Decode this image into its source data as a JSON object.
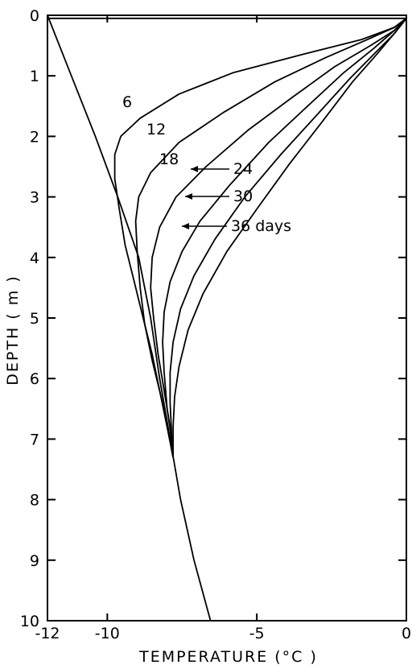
{
  "chart_data": {
    "type": "line",
    "title": "",
    "xlabel": "TEMPERATURE (°C )",
    "ylabel": "DEPTH  ( m )",
    "xlim": [
      -12,
      0
    ],
    "ylim": [
      10,
      0
    ],
    "x_ticks": [
      -12,
      -10,
      -5,
      0
    ],
    "x_tick_labels": [
      "-12",
      "-10",
      "-5",
      "0"
    ],
    "y_ticks": [
      0,
      1,
      2,
      3,
      4,
      5,
      6,
      7,
      8,
      9,
      10
    ],
    "y_tick_labels": [
      "0",
      "1",
      "2",
      "3",
      "4",
      "5",
      "6",
      "7",
      "8",
      "9",
      "10"
    ],
    "grid": false,
    "legend": "none",
    "series": [
      {
        "points": [
          [
            -12,
            0.05
          ],
          [
            -11.7,
            0.05
          ],
          [
            0,
            0.05
          ]
        ]
      },
      {
        "points": [
          [
            -12,
            0
          ],
          [
            -11.2,
            1
          ],
          [
            -10.4,
            2
          ],
          [
            -9.65,
            3
          ],
          [
            -8.95,
            4
          ],
          [
            -8.55,
            5
          ],
          [
            -8.25,
            6
          ],
          [
            -7.9,
            7
          ],
          [
            -7.55,
            8
          ],
          [
            -7.1,
            9
          ],
          [
            -6.55,
            10
          ]
        ]
      },
      {
        "label": "6",
        "points": [
          [
            0,
            0.05
          ],
          [
            -0.4,
            0.2
          ],
          [
            -1.5,
            0.4
          ],
          [
            -3.5,
            0.65
          ],
          [
            -5.8,
            0.95
          ],
          [
            -7.6,
            1.3
          ],
          [
            -8.9,
            1.7
          ],
          [
            -9.55,
            2.0
          ],
          [
            -9.75,
            2.3
          ],
          [
            -9.75,
            2.7
          ],
          [
            -9.6,
            3.2
          ],
          [
            -9.4,
            3.8
          ],
          [
            -9.1,
            4.4
          ],
          [
            -8.8,
            5.0
          ],
          [
            -8.5,
            5.6
          ],
          [
            -8.25,
            6.2
          ],
          [
            -8.0,
            6.8
          ],
          [
            -7.8,
            7.3
          ]
        ]
      },
      {
        "label": "12",
        "points": [
          [
            0,
            0.05
          ],
          [
            -0.4,
            0.2
          ],
          [
            -1.3,
            0.4
          ],
          [
            -2.7,
            0.7
          ],
          [
            -4.4,
            1.1
          ],
          [
            -6.1,
            1.6
          ],
          [
            -7.6,
            2.1
          ],
          [
            -8.55,
            2.6
          ],
          [
            -8.95,
            3.0
          ],
          [
            -9.05,
            3.4
          ],
          [
            -9.0,
            3.9
          ],
          [
            -8.9,
            4.5
          ],
          [
            -8.75,
            5.1
          ],
          [
            -8.5,
            5.7
          ],
          [
            -8.2,
            6.3
          ],
          [
            -7.95,
            6.9
          ],
          [
            -7.8,
            7.3
          ]
        ]
      },
      {
        "label": "18",
        "points": [
          [
            0,
            0.05
          ],
          [
            -0.4,
            0.25
          ],
          [
            -1.2,
            0.5
          ],
          [
            -2.4,
            0.85
          ],
          [
            -3.8,
            1.35
          ],
          [
            -5.3,
            1.9
          ],
          [
            -6.7,
            2.5
          ],
          [
            -7.7,
            3.0
          ],
          [
            -8.25,
            3.5
          ],
          [
            -8.5,
            4.0
          ],
          [
            -8.55,
            4.5
          ],
          [
            -8.45,
            5.0
          ],
          [
            -8.3,
            5.6
          ],
          [
            -8.1,
            6.2
          ],
          [
            -7.9,
            6.8
          ],
          [
            -7.8,
            7.3
          ]
        ]
      },
      {
        "label": "24",
        "points": [
          [
            0,
            0.05
          ],
          [
            -0.4,
            0.25
          ],
          [
            -1.1,
            0.55
          ],
          [
            -2.1,
            0.95
          ],
          [
            -3.3,
            1.5
          ],
          [
            -4.6,
            2.1
          ],
          [
            -5.9,
            2.8
          ],
          [
            -6.9,
            3.4
          ],
          [
            -7.5,
            3.9
          ],
          [
            -7.9,
            4.4
          ],
          [
            -8.1,
            4.9
          ],
          [
            -8.15,
            5.4
          ],
          [
            -8.1,
            5.9
          ],
          [
            -8.0,
            6.5
          ],
          [
            -7.85,
            7.0
          ],
          [
            -7.8,
            7.3
          ]
        ]
      },
      {
        "label": "30",
        "points": [
          [
            0,
            0.05
          ],
          [
            -0.4,
            0.3
          ],
          [
            -1.0,
            0.6
          ],
          [
            -1.9,
            1.05
          ],
          [
            -3.0,
            1.65
          ],
          [
            -4.2,
            2.3
          ],
          [
            -5.4,
            3.0
          ],
          [
            -6.4,
            3.7
          ],
          [
            -7.1,
            4.3
          ],
          [
            -7.55,
            4.85
          ],
          [
            -7.8,
            5.4
          ],
          [
            -7.9,
            5.9
          ],
          [
            -7.9,
            6.4
          ],
          [
            -7.85,
            6.9
          ],
          [
            -7.8,
            7.3
          ]
        ]
      },
      {
        "label": "36 days",
        "points": [
          [
            0,
            0.05
          ],
          [
            -0.4,
            0.3
          ],
          [
            -1.0,
            0.65
          ],
          [
            -1.8,
            1.1
          ],
          [
            -2.8,
            1.75
          ],
          [
            -3.9,
            2.45
          ],
          [
            -5.0,
            3.2
          ],
          [
            -6.0,
            3.9
          ],
          [
            -6.8,
            4.6
          ],
          [
            -7.3,
            5.2
          ],
          [
            -7.6,
            5.8
          ],
          [
            -7.75,
            6.3
          ],
          [
            -7.8,
            6.8
          ],
          [
            -7.8,
            7.3
          ]
        ]
      }
    ]
  }
}
